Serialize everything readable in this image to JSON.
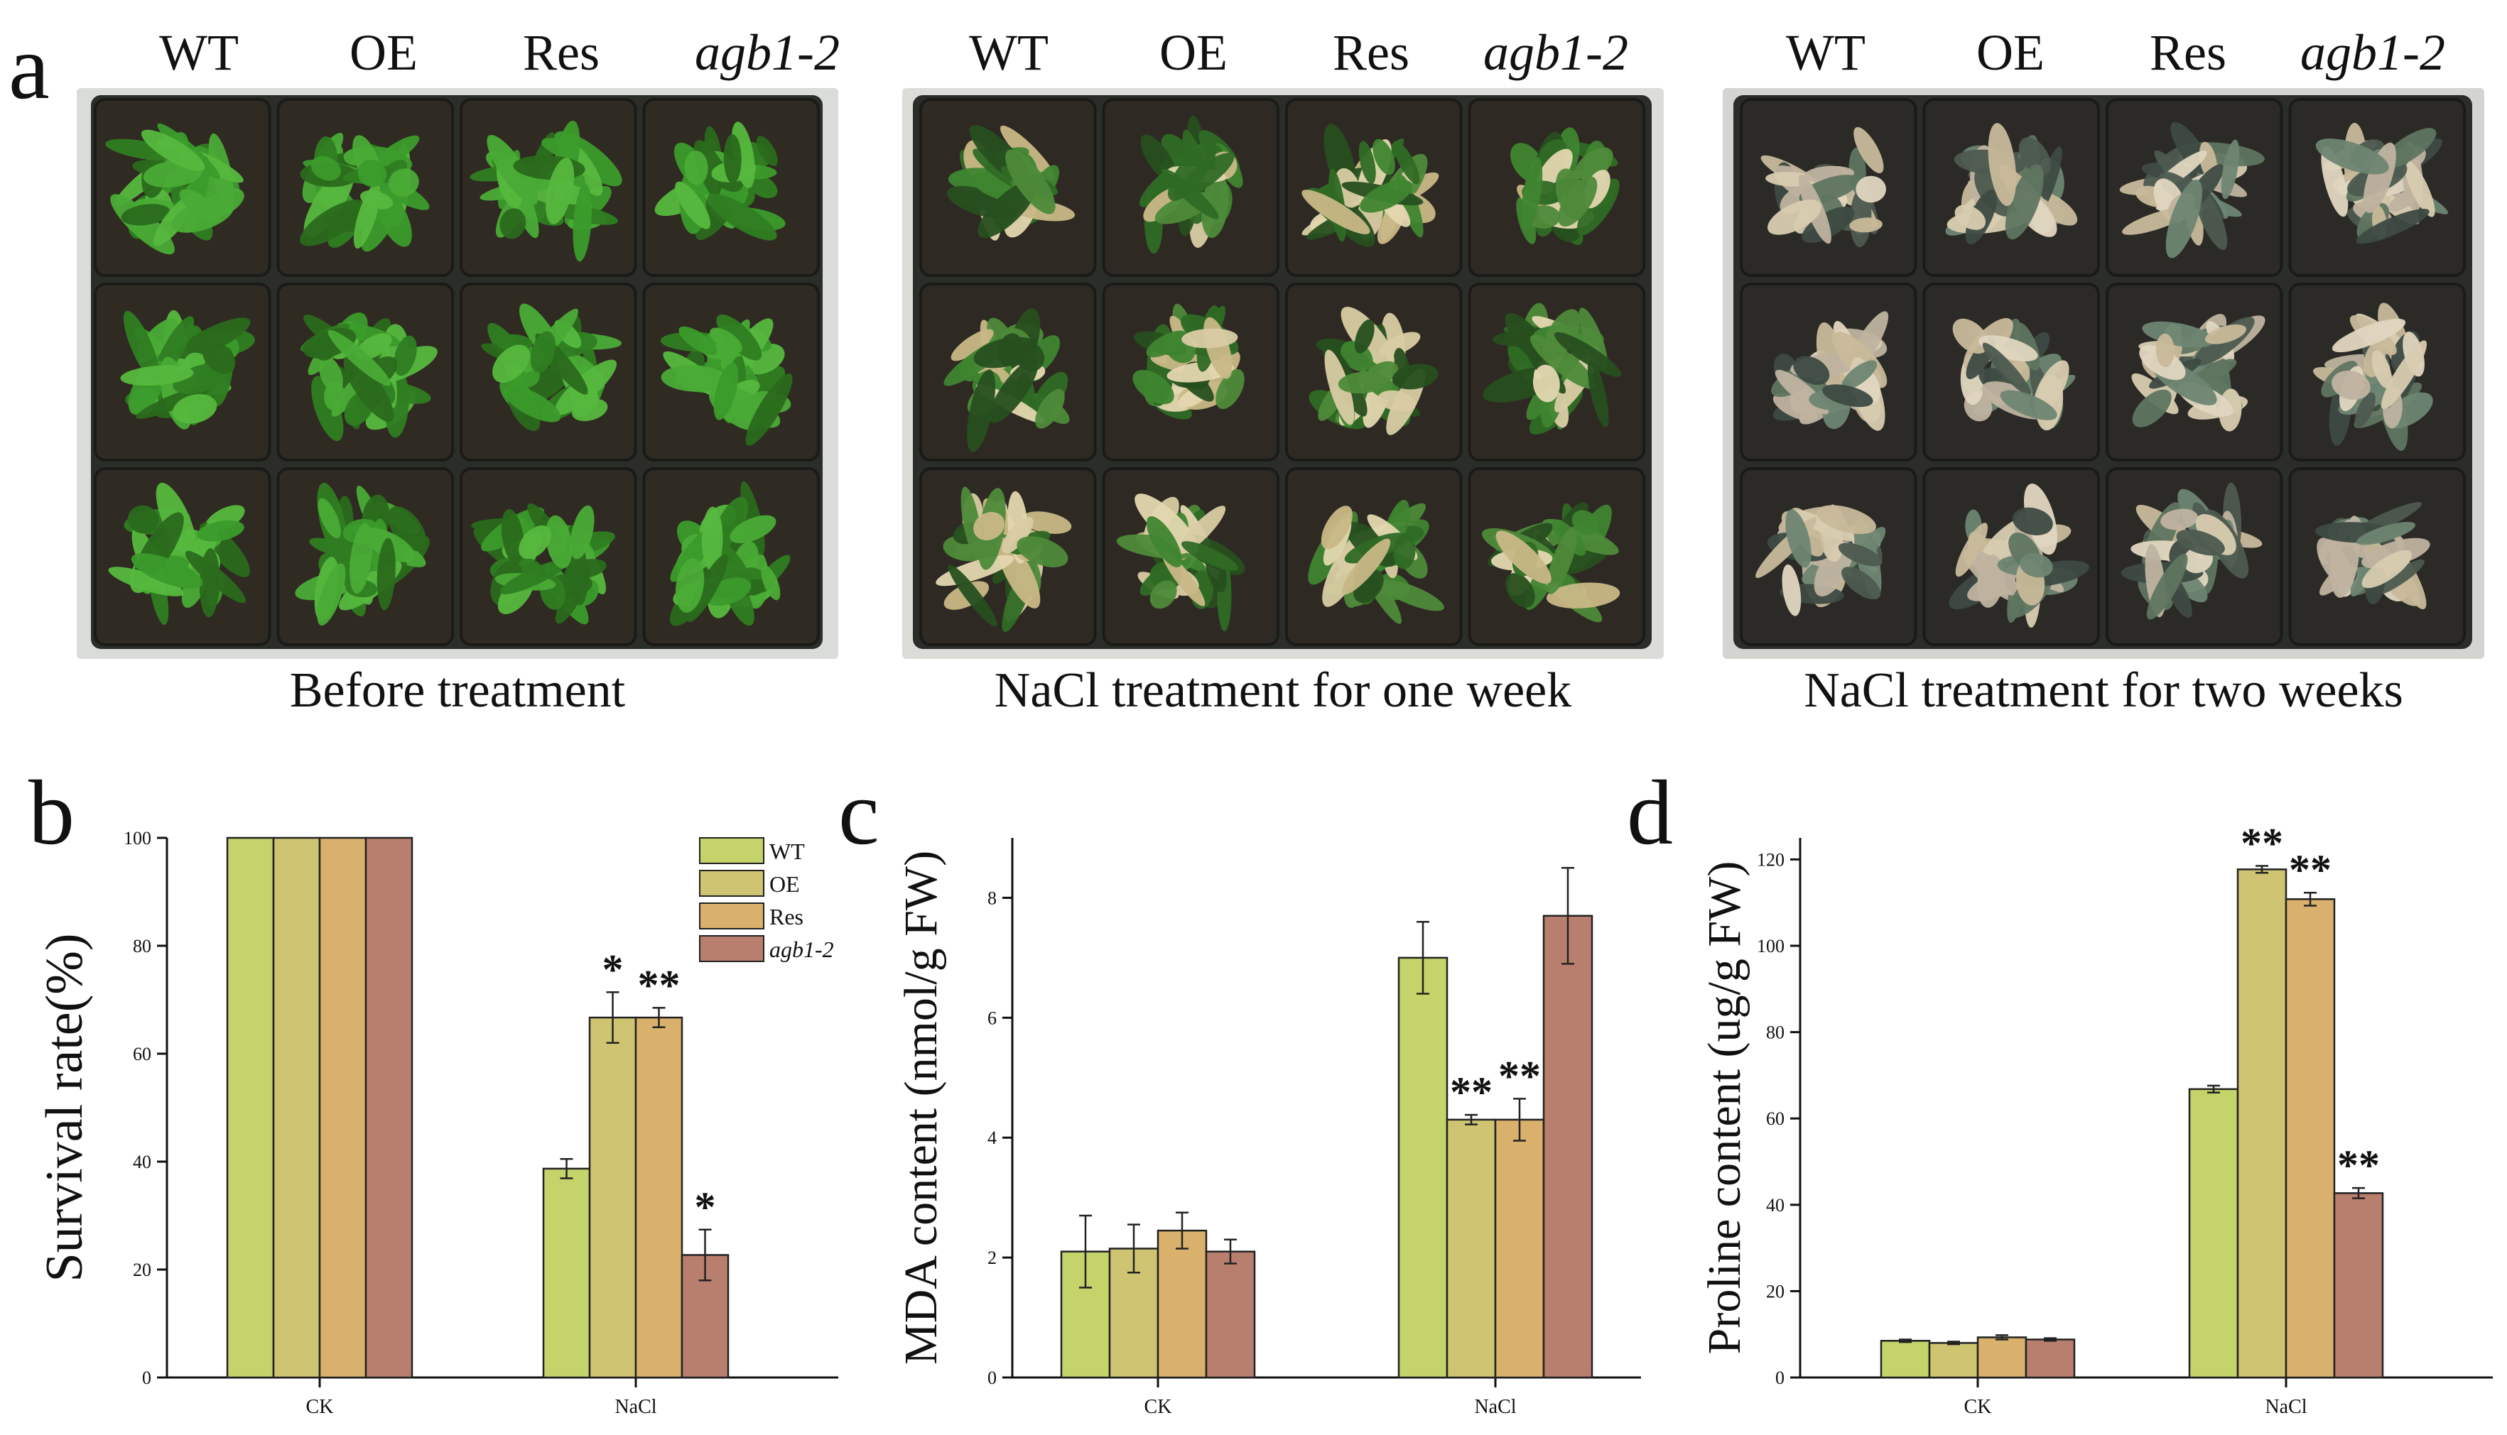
{
  "panel_a": {
    "letter": "a",
    "genotype_labels": [
      "WT",
      "OE",
      "Res",
      "agb1-2"
    ],
    "photos": [
      {
        "caption": "Before treatment",
        "condition": "healthy"
      },
      {
        "caption": "NaCl treatment for one week",
        "condition": "mild"
      },
      {
        "caption": "NaCl treatment for two weeks",
        "condition": "severe"
      }
    ]
  },
  "colors": {
    "WT": "#c4d36a",
    "OE": "#cfc472",
    "Res": "#d9b16c",
    "agb1-2": "#b97f6e"
  },
  "chart_data": [
    {
      "letter": "b",
      "type": "bar",
      "title": "",
      "ylabel": "Survival rate(%)",
      "xlabel": "",
      "categories": [
        "CK",
        "NaCl"
      ],
      "ylim": [
        0,
        100
      ],
      "yticks": [
        0,
        20,
        40,
        60,
        80,
        100
      ],
      "legend": {
        "placement": "top-right",
        "entries": [
          "WT",
          "OE",
          "Res",
          "agb1-2"
        ]
      },
      "series": [
        {
          "name": "WT",
          "values": [
            100,
            38.7
          ],
          "errors": [
            0,
            1.8
          ],
          "sig": [
            "",
            ""
          ]
        },
        {
          "name": "OE",
          "values": [
            100,
            66.7
          ],
          "errors": [
            0,
            4.7
          ],
          "sig": [
            "",
            "*"
          ]
        },
        {
          "name": "Res",
          "values": [
            100,
            66.7
          ],
          "errors": [
            0,
            1.8
          ],
          "sig": [
            "",
            "**"
          ]
        },
        {
          "name": "agb1-2",
          "values": [
            100,
            22.7
          ],
          "errors": [
            0,
            4.7
          ],
          "sig": [
            "",
            "*"
          ]
        }
      ]
    },
    {
      "letter": "c",
      "type": "bar",
      "title": "",
      "ylabel": "MDA content (nmol/g FW)",
      "xlabel": "",
      "categories": [
        "CK",
        "NaCl"
      ],
      "ylim": [
        0,
        9
      ],
      "yticks": [
        0,
        2,
        4,
        6,
        8
      ],
      "series": [
        {
          "name": "WT",
          "values": [
            2.1,
            7.0
          ],
          "errors": [
            0.6,
            0.6
          ],
          "sig": [
            "",
            ""
          ]
        },
        {
          "name": "OE",
          "values": [
            2.15,
            4.3
          ],
          "errors": [
            0.4,
            0.08
          ],
          "sig": [
            "",
            "**"
          ]
        },
        {
          "name": "Res",
          "values": [
            2.45,
            4.3
          ],
          "errors": [
            0.3,
            0.35
          ],
          "sig": [
            "",
            "**"
          ]
        },
        {
          "name": "agb1-2",
          "values": [
            2.1,
            7.7
          ],
          "errors": [
            0.2,
            0.8
          ],
          "sig": [
            "",
            ""
          ]
        }
      ]
    },
    {
      "letter": "d",
      "type": "bar",
      "title": "",
      "ylabel": "Proline content (ug/g FW)",
      "xlabel": "",
      "categories": [
        "CK",
        "NaCl"
      ],
      "ylim": [
        0,
        125
      ],
      "yticks": [
        0,
        20,
        40,
        60,
        80,
        100,
        120
      ],
      "series": [
        {
          "name": "WT",
          "values": [
            8.5,
            66.8
          ],
          "errors": [
            0.3,
            0.8
          ],
          "sig": [
            "",
            ""
          ]
        },
        {
          "name": "OE",
          "values": [
            8.0,
            117.7
          ],
          "errors": [
            0.3,
            0.8
          ],
          "sig": [
            "",
            "**"
          ]
        },
        {
          "name": "Res",
          "values": [
            9.3,
            110.8
          ],
          "errors": [
            0.5,
            1.5
          ],
          "sig": [
            "",
            "**"
          ]
        },
        {
          "name": "agb1-2",
          "values": [
            8.8,
            42.7
          ],
          "errors": [
            0.3,
            1.2
          ],
          "sig": [
            "",
            "**"
          ]
        }
      ]
    }
  ]
}
